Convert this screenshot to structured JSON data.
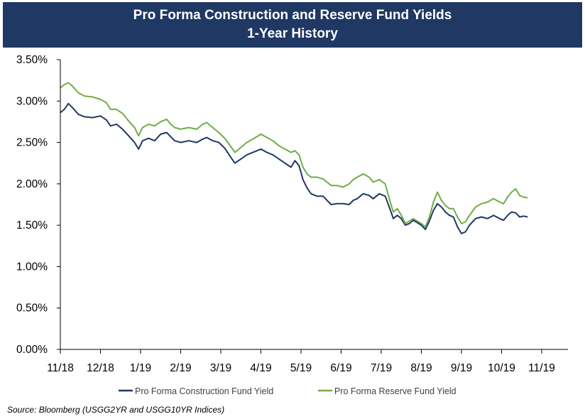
{
  "chart_data": {
    "type": "line",
    "title": "Pro Forma Construction and Reserve Fund Yields",
    "subtitle": "1-Year History",
    "xlabel": "",
    "ylabel": "",
    "ylim": [
      0,
      3.5
    ],
    "yticks": [
      "0.00%",
      "0.50%",
      "1.00%",
      "1.50%",
      "2.00%",
      "2.50%",
      "3.00%",
      "3.50%"
    ],
    "xticks": [
      "11/18",
      "12/18",
      "1/19",
      "2/19",
      "3/19",
      "4/19",
      "5/19",
      "6/19",
      "7/19",
      "8/19",
      "9/19",
      "10/19",
      "11/19"
    ],
    "grid": false,
    "legend_position": "bottom",
    "series": [
      {
        "name": "Pro Forma Construction Fund Yield",
        "color": "#1f3864",
        "points": [
          [
            0,
            2.86
          ],
          [
            0.1,
            2.9
          ],
          [
            0.2,
            2.97
          ],
          [
            0.3,
            2.92
          ],
          [
            0.45,
            2.84
          ],
          [
            0.6,
            2.81
          ],
          [
            0.8,
            2.8
          ],
          [
            1.0,
            2.82
          ],
          [
            1.15,
            2.77
          ],
          [
            1.25,
            2.7
          ],
          [
            1.4,
            2.72
          ],
          [
            1.55,
            2.66
          ],
          [
            1.7,
            2.58
          ],
          [
            1.85,
            2.5
          ],
          [
            1.95,
            2.42
          ],
          [
            2.05,
            2.52
          ],
          [
            2.2,
            2.55
          ],
          [
            2.35,
            2.52
          ],
          [
            2.5,
            2.6
          ],
          [
            2.65,
            2.62
          ],
          [
            2.75,
            2.57
          ],
          [
            2.85,
            2.52
          ],
          [
            3.0,
            2.5
          ],
          [
            3.2,
            2.52
          ],
          [
            3.4,
            2.5
          ],
          [
            3.55,
            2.54
          ],
          [
            3.65,
            2.56
          ],
          [
            3.8,
            2.52
          ],
          [
            3.95,
            2.5
          ],
          [
            4.1,
            2.43
          ],
          [
            4.25,
            2.32
          ],
          [
            4.35,
            2.25
          ],
          [
            4.5,
            2.3
          ],
          [
            4.65,
            2.35
          ],
          [
            4.8,
            2.38
          ],
          [
            5.0,
            2.42
          ],
          [
            5.15,
            2.38
          ],
          [
            5.3,
            2.35
          ],
          [
            5.45,
            2.3
          ],
          [
            5.6,
            2.25
          ],
          [
            5.75,
            2.2
          ],
          [
            5.85,
            2.28
          ],
          [
            5.95,
            2.22
          ],
          [
            6.05,
            2.05
          ],
          [
            6.15,
            1.95
          ],
          [
            6.25,
            1.88
          ],
          [
            6.4,
            1.85
          ],
          [
            6.55,
            1.85
          ],
          [
            6.65,
            1.8
          ],
          [
            6.75,
            1.75
          ],
          [
            6.9,
            1.76
          ],
          [
            7.05,
            1.76
          ],
          [
            7.2,
            1.75
          ],
          [
            7.3,
            1.8
          ],
          [
            7.4,
            1.82
          ],
          [
            7.55,
            1.88
          ],
          [
            7.7,
            1.86
          ],
          [
            7.8,
            1.82
          ],
          [
            7.95,
            1.88
          ],
          [
            8.1,
            1.85
          ],
          [
            8.2,
            1.72
          ],
          [
            8.3,
            1.58
          ],
          [
            8.4,
            1.62
          ],
          [
            8.5,
            1.58
          ],
          [
            8.6,
            1.5
          ],
          [
            8.7,
            1.52
          ],
          [
            8.8,
            1.56
          ],
          [
            8.9,
            1.53
          ],
          [
            9.0,
            1.5
          ],
          [
            9.1,
            1.45
          ],
          [
            9.2,
            1.55
          ],
          [
            9.3,
            1.68
          ],
          [
            9.4,
            1.76
          ],
          [
            9.5,
            1.72
          ],
          [
            9.6,
            1.66
          ],
          [
            9.7,
            1.62
          ],
          [
            9.8,
            1.6
          ],
          [
            9.9,
            1.48
          ],
          [
            10.0,
            1.4
          ],
          [
            10.1,
            1.42
          ],
          [
            10.2,
            1.5
          ],
          [
            10.35,
            1.58
          ],
          [
            10.5,
            1.6
          ],
          [
            10.65,
            1.58
          ],
          [
            10.8,
            1.62
          ],
          [
            10.95,
            1.58
          ],
          [
            11.05,
            1.56
          ],
          [
            11.15,
            1.62
          ],
          [
            11.25,
            1.66
          ],
          [
            11.35,
            1.65
          ],
          [
            11.45,
            1.6
          ],
          [
            11.55,
            1.61
          ],
          [
            11.65,
            1.6
          ]
        ]
      },
      {
        "name": "Pro Forma Reserve Fund Yield",
        "color": "#70ad47",
        "points": [
          [
            0,
            3.16
          ],
          [
            0.1,
            3.2
          ],
          [
            0.2,
            3.22
          ],
          [
            0.3,
            3.18
          ],
          [
            0.45,
            3.1
          ],
          [
            0.6,
            3.06
          ],
          [
            0.8,
            3.05
          ],
          [
            1.0,
            3.02
          ],
          [
            1.15,
            2.98
          ],
          [
            1.25,
            2.9
          ],
          [
            1.4,
            2.9
          ],
          [
            1.55,
            2.85
          ],
          [
            1.7,
            2.76
          ],
          [
            1.85,
            2.68
          ],
          [
            1.95,
            2.58
          ],
          [
            2.05,
            2.68
          ],
          [
            2.2,
            2.72
          ],
          [
            2.35,
            2.7
          ],
          [
            2.5,
            2.75
          ],
          [
            2.65,
            2.78
          ],
          [
            2.75,
            2.72
          ],
          [
            2.85,
            2.68
          ],
          [
            3.0,
            2.66
          ],
          [
            3.2,
            2.68
          ],
          [
            3.4,
            2.66
          ],
          [
            3.55,
            2.72
          ],
          [
            3.65,
            2.74
          ],
          [
            3.8,
            2.68
          ],
          [
            3.95,
            2.62
          ],
          [
            4.1,
            2.55
          ],
          [
            4.25,
            2.45
          ],
          [
            4.35,
            2.38
          ],
          [
            4.5,
            2.44
          ],
          [
            4.65,
            2.5
          ],
          [
            4.8,
            2.54
          ],
          [
            5.0,
            2.6
          ],
          [
            5.15,
            2.56
          ],
          [
            5.3,
            2.52
          ],
          [
            5.45,
            2.46
          ],
          [
            5.6,
            2.42
          ],
          [
            5.75,
            2.38
          ],
          [
            5.85,
            2.4
          ],
          [
            5.95,
            2.35
          ],
          [
            6.05,
            2.2
          ],
          [
            6.15,
            2.12
          ],
          [
            6.25,
            2.08
          ],
          [
            6.4,
            2.08
          ],
          [
            6.55,
            2.06
          ],
          [
            6.65,
            2.02
          ],
          [
            6.75,
            1.98
          ],
          [
            6.9,
            1.98
          ],
          [
            7.05,
            1.96
          ],
          [
            7.2,
            2.0
          ],
          [
            7.3,
            2.05
          ],
          [
            7.4,
            2.08
          ],
          [
            7.55,
            2.12
          ],
          [
            7.7,
            2.08
          ],
          [
            7.8,
            2.02
          ],
          [
            7.95,
            2.05
          ],
          [
            8.1,
            2.0
          ],
          [
            8.2,
            1.82
          ],
          [
            8.3,
            1.66
          ],
          [
            8.4,
            1.7
          ],
          [
            8.5,
            1.62
          ],
          [
            8.6,
            1.52
          ],
          [
            8.7,
            1.55
          ],
          [
            8.8,
            1.58
          ],
          [
            8.9,
            1.55
          ],
          [
            9.0,
            1.52
          ],
          [
            9.1,
            1.48
          ],
          [
            9.2,
            1.6
          ],
          [
            9.3,
            1.78
          ],
          [
            9.4,
            1.9
          ],
          [
            9.5,
            1.8
          ],
          [
            9.6,
            1.74
          ],
          [
            9.7,
            1.7
          ],
          [
            9.8,
            1.7
          ],
          [
            9.9,
            1.6
          ],
          [
            10.0,
            1.52
          ],
          [
            10.1,
            1.54
          ],
          [
            10.2,
            1.62
          ],
          [
            10.35,
            1.72
          ],
          [
            10.5,
            1.76
          ],
          [
            10.65,
            1.78
          ],
          [
            10.8,
            1.82
          ],
          [
            10.95,
            1.78
          ],
          [
            11.05,
            1.76
          ],
          [
            11.15,
            1.84
          ],
          [
            11.25,
            1.9
          ],
          [
            11.35,
            1.94
          ],
          [
            11.45,
            1.86
          ],
          [
            11.55,
            1.84
          ],
          [
            11.65,
            1.83
          ]
        ]
      }
    ],
    "source": "Source: Bloomberg (USGG2YR  and USGG10YR Indices)"
  }
}
